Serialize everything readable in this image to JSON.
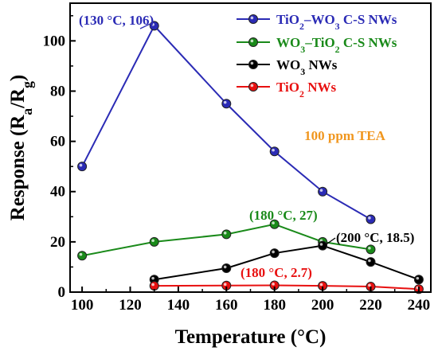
{
  "chart_data": {
    "type": "line",
    "xlabel": "Temperature (°C)",
    "ylabel": "Response (R_a/R_g)",
    "xlim": [
      95,
      245
    ],
    "ylim": [
      0,
      115
    ],
    "xticks": [
      100,
      120,
      140,
      160,
      180,
      200,
      220,
      240
    ],
    "yticks": [
      0,
      20,
      40,
      60,
      80,
      100
    ],
    "legend_position": "top-right",
    "series": [
      {
        "name": "TiO₂–WO₃ C-S NWs",
        "color": "#2b2bb5",
        "x": [
          100,
          130,
          160,
          180,
          200,
          220
        ],
        "y": [
          50,
          106,
          75,
          56,
          40,
          29
        ]
      },
      {
        "name": "WO₃–TiO₂ C-S NWs",
        "color": "#1a8a1a",
        "x": [
          100,
          130,
          160,
          180,
          200,
          220
        ],
        "y": [
          14.5,
          20,
          23,
          27,
          20,
          17
        ]
      },
      {
        "name": "WO₃ NWs",
        "color": "#000000",
        "x": [
          130,
          160,
          180,
          200,
          220,
          240
        ],
        "y": [
          5,
          9.5,
          15.5,
          18.5,
          12,
          5
        ]
      },
      {
        "name": "TiO₂ NWs",
        "color": "#e81010",
        "x": [
          130,
          160,
          180,
          200,
          220,
          240
        ],
        "y": [
          2.5,
          2.6,
          2.7,
          2.5,
          2.2,
          1.2
        ]
      }
    ],
    "annotations": [
      {
        "text": "(130 °C, 106)",
        "color": "#2b2bb5",
        "series": 0,
        "point": 1
      },
      {
        "text": "(180 °C, 27)",
        "color": "#1a8a1a",
        "series": 1,
        "point": 3
      },
      {
        "text": "(200 °C, 18.5)",
        "color": "#000000",
        "series": 2,
        "point": 3
      },
      {
        "text": "(180 °C, 2.7)",
        "color": "#e81010",
        "series": 3,
        "point": 2
      },
      {
        "text": "100 ppm TEA",
        "color": "#f0961e"
      }
    ]
  }
}
